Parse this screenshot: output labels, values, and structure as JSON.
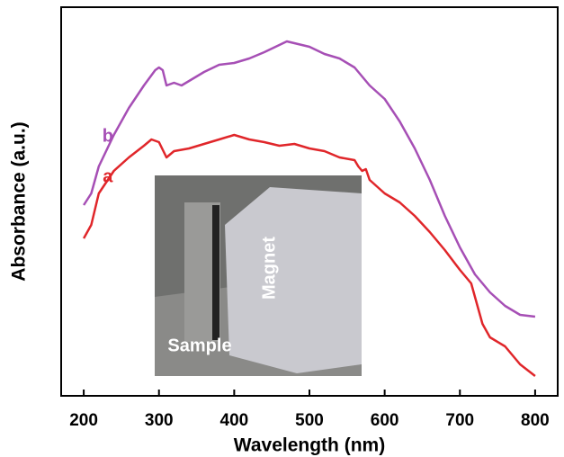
{
  "chart_data": {
    "type": "line",
    "x_label": "Wavelength (nm)",
    "y_label": "Absorbance (a.u.)",
    "xlim": [
      170,
      830
    ],
    "xticks": [
      200,
      300,
      400,
      500,
      600,
      700,
      800
    ],
    "ylim": [
      0,
      432
    ],
    "series": [
      {
        "name": "b",
        "color": "#a64fb5",
        "x": [
          200,
          210,
          220,
          240,
          260,
          280,
          295,
          300,
          305,
          310,
          320,
          330,
          340,
          360,
          380,
          400,
          420,
          440,
          460,
          470,
          480,
          500,
          520,
          540,
          560,
          580,
          600,
          620,
          640,
          660,
          680,
          700,
          720,
          740,
          760,
          780,
          800
        ],
        "values": [
          212,
          225,
          255,
          290,
          320,
          345,
          362,
          365,
          362,
          345,
          348,
          345,
          350,
          360,
          368,
          370,
          375,
          382,
          390,
          394,
          392,
          388,
          380,
          375,
          365,
          345,
          330,
          305,
          275,
          240,
          200,
          165,
          135,
          115,
          100,
          90,
          88
        ]
      },
      {
        "name": "a",
        "color": "#e0262a",
        "x": [
          200,
          210,
          220,
          240,
          260,
          280,
          290,
          300,
          310,
          320,
          340,
          360,
          380,
          400,
          420,
          440,
          460,
          480,
          500,
          520,
          540,
          560,
          565,
          570,
          575,
          580,
          600,
          620,
          640,
          660,
          680,
          700,
          715,
          720,
          730,
          740,
          760,
          780,
          800
        ],
        "values": [
          175,
          190,
          225,
          250,
          265,
          278,
          285,
          282,
          265,
          272,
          275,
          280,
          285,
          290,
          285,
          282,
          278,
          280,
          275,
          272,
          265,
          262,
          255,
          250,
          252,
          240,
          225,
          215,
          200,
          182,
          162,
          140,
          125,
          110,
          80,
          65,
          55,
          35,
          22
        ]
      }
    ],
    "inset_labels": {
      "sample": "Sample",
      "magnet": "Magnet"
    }
  }
}
